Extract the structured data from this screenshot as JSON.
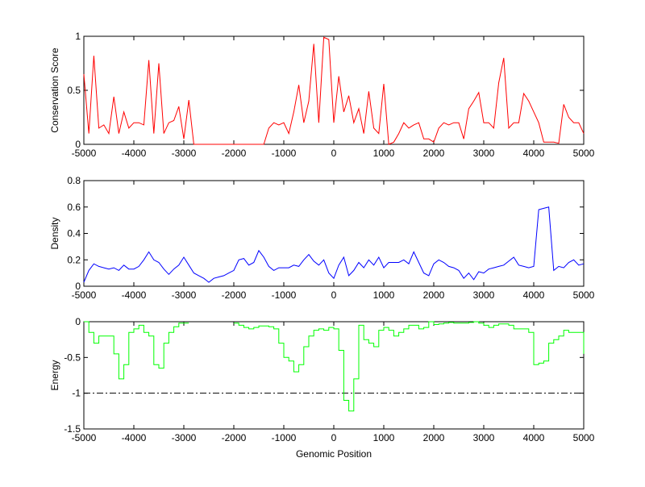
{
  "chart_data": [
    {
      "type": "line",
      "ylabel": "Conservation Score",
      "xlabel": "",
      "xlim": [
        -5000,
        5000
      ],
      "ylim": [
        0,
        1
      ],
      "xticks": [
        -5000,
        -4000,
        -3000,
        -2000,
        -1000,
        0,
        1000,
        2000,
        3000,
        4000,
        5000
      ],
      "yticks": [
        0,
        0.5,
        1
      ],
      "ytick_labels": [
        "0",
        "0.5",
        "1"
      ],
      "color": "#ff0000",
      "step": 100,
      "values": [
        0.65,
        0.1,
        0.82,
        0.15,
        0.18,
        0.1,
        0.44,
        0.1,
        0.3,
        0.15,
        0.2,
        0.2,
        0.18,
        0.78,
        0.1,
        0.75,
        0.1,
        0.2,
        0.22,
        0.35,
        0.05,
        0.41,
        0,
        0,
        0,
        0,
        0,
        0,
        0,
        0,
        0,
        0,
        0,
        0,
        0,
        0,
        0,
        0.15,
        0.2,
        0.18,
        0.2,
        0.1,
        0.3,
        0.55,
        0.2,
        0.4,
        0.93,
        0.2,
        0.99,
        0.97,
        0.2,
        0.63,
        0.3,
        0.45,
        0.2,
        0.33,
        0.1,
        0.49,
        0.15,
        0.1,
        0.56,
        0,
        0.02,
        0.1,
        0.2,
        0.15,
        0.18,
        0.2,
        0.05,
        0.05,
        0.02,
        0.15,
        0.2,
        0.18,
        0.2,
        0.2,
        0.05,
        0.33,
        0.4,
        0.48,
        0.2,
        0.2,
        0.15,
        0.57,
        0.8,
        0.15,
        0.2,
        0.2,
        0.47,
        0.4,
        0.3,
        0.2,
        0.02,
        0.02,
        0.02,
        0.01,
        0.37,
        0.25,
        0.2,
        0.2,
        0.1
      ]
    },
    {
      "type": "line",
      "ylabel": "Density",
      "xlabel": "",
      "xlim": [
        -5000,
        5000
      ],
      "ylim": [
        0,
        0.8
      ],
      "xticks": [
        -5000,
        -4000,
        -3000,
        -2000,
        -1000,
        0,
        1000,
        2000,
        3000,
        4000,
        5000
      ],
      "yticks": [
        0,
        0.2,
        0.4,
        0.6,
        0.8
      ],
      "ytick_labels": [
        "0",
        "0.2",
        "0.4",
        "0.6",
        "0.8"
      ],
      "color": "#0000ff",
      "step": 100,
      "values": [
        0.03,
        0.12,
        0.17,
        0.15,
        0.14,
        0.13,
        0.14,
        0.12,
        0.16,
        0.13,
        0.13,
        0.15,
        0.2,
        0.26,
        0.2,
        0.18,
        0.13,
        0.09,
        0.13,
        0.16,
        0.22,
        0.16,
        0.1,
        0.08,
        0.06,
        0.03,
        0.06,
        0.07,
        0.08,
        0.1,
        0.12,
        0.2,
        0.21,
        0.16,
        0.18,
        0.27,
        0.22,
        0.15,
        0.12,
        0.14,
        0.14,
        0.14,
        0.16,
        0.15,
        0.2,
        0.24,
        0.19,
        0.16,
        0.2,
        0.1,
        0.06,
        0.16,
        0.22,
        0.08,
        0.12,
        0.18,
        0.14,
        0.2,
        0.16,
        0.22,
        0.14,
        0.18,
        0.18,
        0.18,
        0.2,
        0.17,
        0.26,
        0.18,
        0.1,
        0.08,
        0.17,
        0.2,
        0.18,
        0.15,
        0.14,
        0.12,
        0.06,
        0.1,
        0.05,
        0.11,
        0.1,
        0.13,
        0.14,
        0.15,
        0.16,
        0.19,
        0.22,
        0.16,
        0.15,
        0.14,
        0.15,
        0.58,
        0.59,
        0.6,
        0.12,
        0.15,
        0.14,
        0.18,
        0.2,
        0.16,
        0.17
      ]
    },
    {
      "type": "line",
      "ylabel": "Energy",
      "xlabel": "Genomic Position",
      "xlim": [
        -5000,
        5000
      ],
      "ylim": [
        -1.5,
        0
      ],
      "xticks": [
        -5000,
        -4000,
        -3000,
        -2000,
        -1000,
        0,
        1000,
        2000,
        3000,
        4000,
        5000
      ],
      "yticks": [
        -1.5,
        -1,
        -0.5,
        0
      ],
      "ytick_labels": [
        "-1.5",
        "-1",
        "-0.5",
        "0"
      ],
      "color": "#00ff00",
      "step": 100,
      "values": [
        0,
        -0.15,
        -0.3,
        -0.2,
        -0.2,
        -0.2,
        -0.45,
        -0.8,
        -0.6,
        -0.15,
        -0.1,
        -0.05,
        -0.15,
        -0.2,
        -0.6,
        -0.65,
        -0.3,
        -0.15,
        -0.07,
        -0.02,
        -0.02,
        -0.02,
        null,
        null,
        null,
        null,
        null,
        null,
        null,
        null,
        -0.02,
        -0.05,
        -0.08,
        -0.1,
        -0.08,
        -0.06,
        -0.06,
        -0.07,
        -0.1,
        -0.3,
        -0.5,
        -0.55,
        -0.7,
        -0.6,
        -0.35,
        -0.2,
        -0.12,
        -0.1,
        -0.12,
        -0.08,
        -0.1,
        -0.4,
        -1.1,
        -1.25,
        -0.8,
        -0.05,
        -0.25,
        -0.3,
        -0.35,
        -0.12,
        -0.08,
        -0.12,
        -0.2,
        -0.15,
        -0.1,
        -0.05,
        -0.05,
        -0.1,
        -0.08,
        0,
        -0.04,
        -0.03,
        -0.02,
        -0.01,
        -0.02,
        -0.02,
        -0.02,
        -0.01,
        0,
        -0.02,
        -0.05,
        -0.08,
        -0.05,
        -0.03,
        -0.03,
        -0.05,
        -0.1,
        -0.1,
        -0.1,
        -0.15,
        -0.6,
        -0.58,
        -0.55,
        -0.3,
        -0.25,
        -0.2,
        -0.12,
        -0.15,
        -0.15,
        -0.15,
        -0.45
      ],
      "reference_line": {
        "y": -1,
        "style": "dash-dot",
        "color": "#000000"
      }
    }
  ]
}
